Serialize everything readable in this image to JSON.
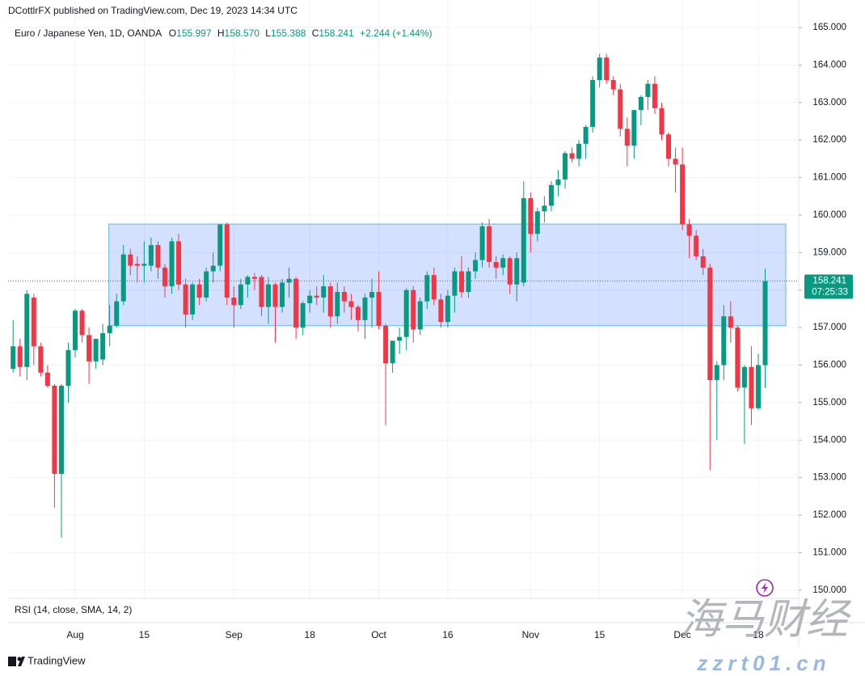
{
  "header": {
    "publisher": "DCottlrFX published on TradingView.com, Dec 19, 2023 14:34 UTC"
  },
  "chart_data": {
    "type": "candlestick",
    "legend": {
      "symbol": "Euro / Japanese Yen, 1D, OANDA",
      "fields": [
        {
          "key": "O",
          "value": "155.997"
        },
        {
          "key": "H",
          "value": "158.570"
        },
        {
          "key": "L",
          "value": "155.388"
        },
        {
          "key": "C",
          "value": "158.241"
        }
      ],
      "change": "+2.244 (+1.44%)"
    },
    "categories": [
      null,
      null,
      null,
      null,
      null,
      null,
      null,
      null,
      null,
      "Aug",
      null,
      null,
      null,
      null,
      null,
      null,
      null,
      null,
      null,
      "15",
      null,
      null,
      null,
      null,
      null,
      null,
      null,
      null,
      null,
      null,
      null,
      null,
      "Sep",
      null,
      null,
      null,
      null,
      null,
      null,
      null,
      null,
      null,
      null,
      "18",
      null,
      null,
      null,
      null,
      null,
      null,
      null,
      null,
      null,
      "Oct",
      null,
      null,
      null,
      null,
      null,
      null,
      null,
      null,
      null,
      "16",
      null,
      null,
      null,
      null,
      null,
      null,
      null,
      null,
      null,
      null,
      null,
      "Nov",
      null,
      null,
      null,
      null,
      null,
      null,
      null,
      null,
      null,
      "15",
      null,
      null,
      null,
      null,
      null,
      null,
      null,
      null,
      null,
      null,
      null,
      "Dec",
      null,
      null,
      null,
      null,
      null,
      null,
      null,
      null,
      null,
      null,
      "18",
      null
    ],
    "open": [
      155.9,
      156.5,
      155.95,
      157.8,
      156.5,
      155.8,
      155.45,
      153.1,
      155.45,
      156.4,
      157.45,
      156.8,
      156.1,
      156.15,
      156.85,
      157.05,
      157.7,
      158.95,
      158.7,
      158.65,
      158.65,
      159.2,
      158.6,
      158.1,
      159.3,
      158.15,
      157.35,
      158.15,
      157.8,
      158.5,
      158.65,
      159.75,
      157.8,
      157.6,
      158.15,
      158.35,
      158.35,
      157.55,
      158.15,
      157.55,
      158.2,
      158.3,
      157.0,
      157.65,
      157.85,
      157.8,
      158.1,
      157.3,
      157.95,
      157.7,
      157.55,
      157.2,
      157.8,
      157.95,
      157.05,
      156.05,
      156.65,
      156.75,
      158.0,
      156.95,
      157.7,
      158.4,
      157.75,
      157.15,
      157.85,
      158.5,
      157.95,
      158.5,
      158.8,
      159.7,
      158.75,
      158.6,
      158.85,
      158.15,
      158.2,
      160.45,
      159.5,
      160.1,
      160.25,
      160.8,
      160.95,
      161.65,
      161.5,
      161.9,
      162.35,
      163.6,
      164.2,
      163.6,
      163.35,
      162.3,
      161.85,
      162.8,
      163.15,
      163.5,
      162.85,
      162.15,
      161.5,
      161.35,
      159.75,
      159.45,
      158.9,
      158.6,
      155.6,
      156.0,
      157.3,
      157.0,
      155.4,
      155.95,
      154.85,
      155.997
    ],
    "high": [
      157.2,
      156.7,
      158.0,
      157.9,
      156.6,
      156.0,
      155.5,
      155.5,
      156.6,
      157.5,
      157.5,
      157.0,
      156.7,
      157.1,
      157.6,
      157.9,
      159.2,
      159.1,
      158.9,
      159.3,
      159.4,
      159.3,
      158.7,
      159.4,
      159.5,
      158.3,
      158.2,
      158.3,
      158.6,
      159.0,
      159.75,
      159.8,
      158.1,
      158.3,
      158.4,
      158.45,
      158.4,
      158.35,
      158.2,
      158.3,
      158.6,
      158.35,
      157.7,
      158.0,
      158.1,
      158.4,
      158.2,
      158.2,
      158.1,
      157.9,
      157.6,
      157.9,
      158.3,
      158.5,
      157.1,
      156.6,
      157.0,
      158.05,
      158.1,
      157.8,
      158.5,
      158.6,
      157.9,
      158.0,
      158.6,
      158.9,
      158.6,
      159.0,
      159.8,
      159.9,
      158.9,
      158.95,
      158.9,
      159.0,
      160.9,
      160.6,
      160.2,
      160.5,
      160.9,
      161.2,
      161.7,
      161.8,
      162.0,
      162.4,
      163.7,
      164.3,
      164.3,
      163.7,
      163.5,
      162.6,
      162.8,
      163.2,
      163.6,
      163.7,
      163.0,
      162.2,
      161.8,
      161.8,
      159.9,
      159.6,
      159.1,
      158.7,
      156.1,
      157.6,
      157.7,
      157.05,
      156.0,
      156.5,
      156.3,
      158.57
    ],
    "low": [
      155.8,
      155.7,
      155.6,
      156.0,
      155.7,
      155.4,
      152.2,
      151.4,
      155.0,
      156.2,
      156.6,
      155.5,
      155.9,
      156.0,
      156.5,
      157.0,
      157.6,
      158.4,
      158.2,
      158.2,
      158.5,
      158.3,
      157.8,
      157.9,
      158.0,
      157.0,
      157.2,
      157.6,
      157.7,
      158.2,
      158.5,
      157.6,
      157.0,
      157.5,
      157.8,
      158.0,
      157.3,
      157.1,
      156.6,
      157.4,
      157.8,
      156.7,
      156.8,
      157.4,
      157.6,
      157.4,
      157.0,
      157.1,
      157.4,
      157.2,
      156.9,
      156.7,
      157.0,
      156.95,
      154.4,
      155.8,
      156.3,
      156.4,
      156.6,
      156.8,
      157.5,
      157.6,
      157.0,
      157.0,
      157.4,
      157.8,
      157.8,
      158.3,
      158.6,
      158.6,
      158.3,
      158.4,
      157.9,
      157.7,
      158.1,
      159.0,
      159.3,
      159.8,
      160.1,
      160.5,
      160.7,
      161.4,
      161.3,
      161.5,
      162.2,
      163.4,
      163.5,
      163.2,
      162.1,
      161.3,
      161.5,
      162.4,
      162.8,
      162.7,
      162.0,
      161.3,
      160.6,
      159.6,
      158.85,
      158.8,
      158.4,
      153.2,
      154.0,
      155.6,
      156.6,
      155.3,
      153.9,
      154.4,
      154.8,
      155.388
    ],
    "close": [
      156.5,
      155.95,
      157.9,
      156.5,
      155.8,
      155.45,
      153.1,
      155.45,
      156.4,
      157.45,
      156.8,
      156.1,
      156.7,
      156.85,
      157.05,
      157.7,
      158.95,
      158.65,
      158.65,
      158.7,
      159.2,
      158.6,
      158.1,
      159.3,
      158.15,
      157.35,
      158.15,
      157.8,
      158.5,
      158.65,
      159.75,
      157.8,
      157.6,
      158.15,
      158.35,
      158.3,
      157.55,
      158.15,
      157.55,
      158.2,
      158.3,
      157.0,
      157.65,
      157.85,
      157.8,
      158.1,
      157.3,
      157.95,
      157.7,
      157.55,
      157.2,
      157.8,
      157.95,
      157.05,
      156.05,
      156.65,
      156.75,
      158.0,
      156.95,
      157.7,
      158.4,
      157.75,
      157.15,
      157.85,
      158.5,
      157.95,
      158.5,
      158.8,
      159.7,
      158.75,
      158.6,
      158.85,
      158.15,
      158.85,
      160.45,
      159.5,
      160.1,
      160.25,
      160.8,
      160.95,
      161.65,
      161.5,
      161.9,
      162.35,
      163.6,
      164.2,
      163.6,
      163.35,
      162.3,
      161.85,
      162.8,
      163.15,
      163.5,
      162.85,
      162.15,
      161.5,
      161.35,
      159.75,
      159.45,
      158.9,
      158.6,
      155.6,
      156.0,
      157.3,
      157.0,
      155.4,
      155.95,
      154.85,
      156.0,
      158.241
    ],
    "up_color": "#089981",
    "down_color": "#f23645",
    "zone": {
      "top": 159.76,
      "bottom": 157.05,
      "color": "#2962ff"
    },
    "last_price": 158.241,
    "countdown": "07:25:33",
    "ylim": [
      149.78,
      165.26
    ],
    "yticks": [
      {
        "value": 150,
        "label": "150.000"
      },
      {
        "value": 151,
        "label": "151.000"
      },
      {
        "value": 152,
        "label": "152.000"
      },
      {
        "value": 153,
        "label": "153.000"
      },
      {
        "value": 154,
        "label": "154.000"
      },
      {
        "value": 155,
        "label": "155.000"
      },
      {
        "value": 156,
        "label": "156.000"
      },
      {
        "value": 157,
        "label": "157.000"
      },
      {
        "value": 158,
        "label": "158.000"
      },
      {
        "value": 159,
        "label": "159.000"
      },
      {
        "value": 160,
        "label": "160.000"
      },
      {
        "value": 161,
        "label": "161.000"
      },
      {
        "value": 162,
        "label": "162.000"
      },
      {
        "value": 163,
        "label": "163.000"
      },
      {
        "value": 164,
        "label": "164.000"
      },
      {
        "value": 165,
        "label": "165.000"
      }
    ],
    "grid": true,
    "indicator": "RSI (14, close, SMA, 14, 2)"
  },
  "footer": {
    "brand": "TradingView"
  },
  "watermark": {
    "name": "海马财经",
    "site": "zzrt01.cn"
  }
}
